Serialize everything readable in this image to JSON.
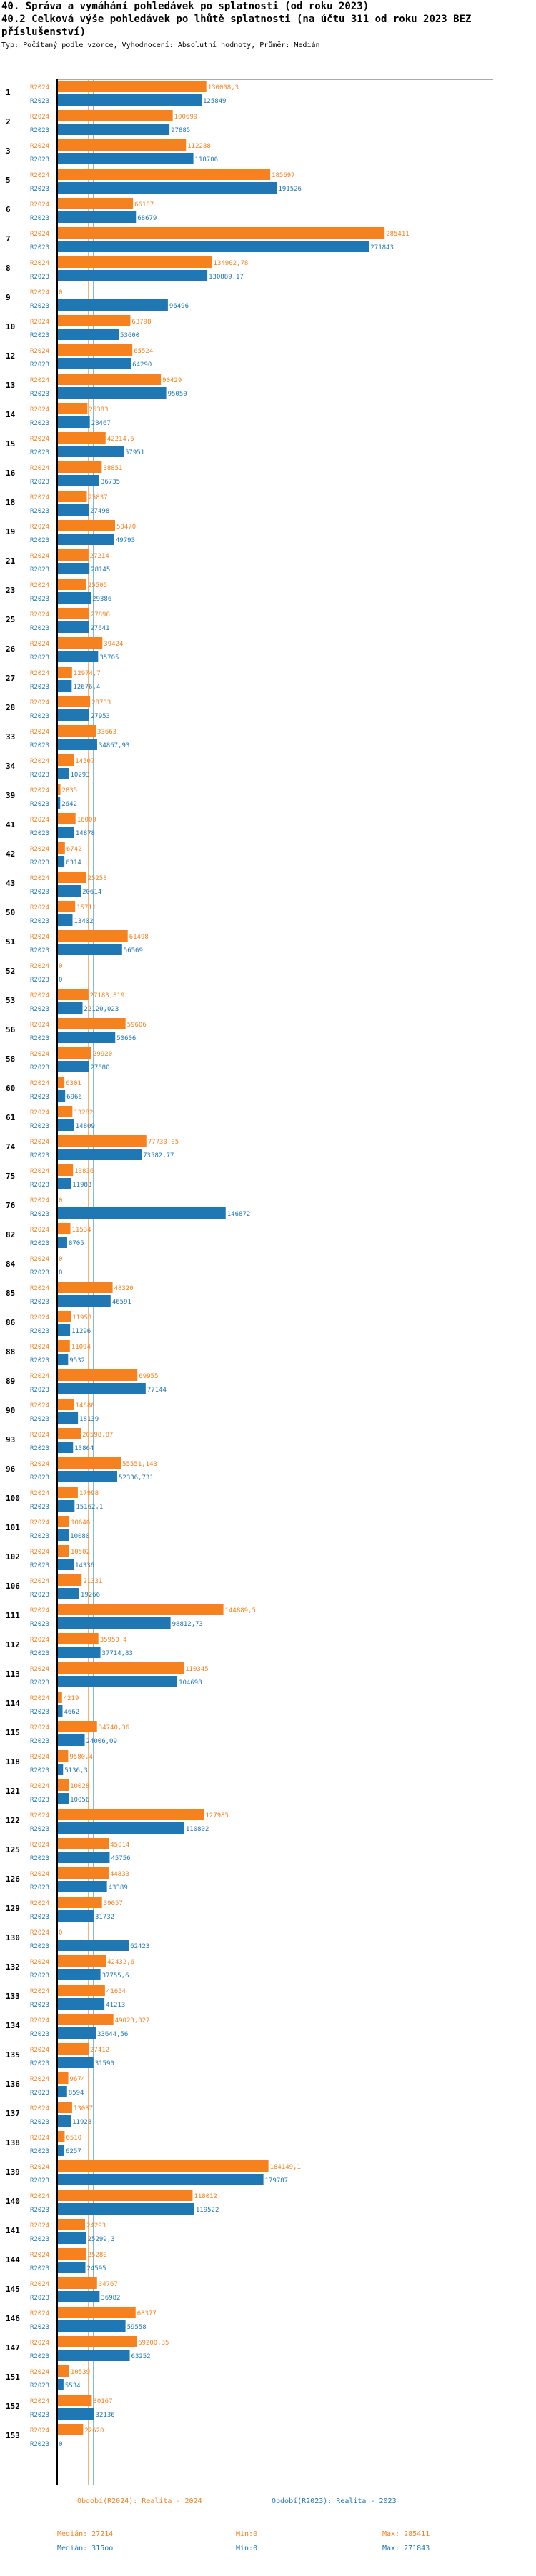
{
  "header": {
    "title": "40. Správa a vymáhání pohledávek po splatnosti (od roku 2023)",
    "subtitle_line1": "40.2 Celková výše pohledávek po lhůtě splatnosti (na účtu 311 od roku 2023 BEZ",
    "subtitle_line2": "příslušenství)",
    "note": "Typ: Počítaný podle vzorce, Vyhodnocení: Absolutní hodnoty, Průměr: Medián"
  },
  "colors": {
    "orange": "#f5821f",
    "blue": "#1f77b4",
    "grid": "#b7b7b7",
    "median_orange": "#f5a05a",
    "median_blue": "#7fb3d8"
  },
  "chart_data": {
    "type": "bar",
    "orientation": "horizontal",
    "xlim": [
      0,
      380000
    ],
    "series_labels": [
      "R2024",
      "R2023"
    ],
    "categories": [
      {
        "id": "1",
        "r2024": 130008,
        "r2024_label": "130008,3",
        "r2023": 125849,
        "r2023_label": "125849"
      },
      {
        "id": "2",
        "r2024": 100699,
        "r2024_label": "100699",
        "r2023": 97885,
        "r2023_label": "97885"
      },
      {
        "id": "3",
        "r2024": 112288,
        "r2024_label": "112288",
        "r2023": 118706,
        "r2023_label": "118706"
      },
      {
        "id": "5",
        "r2024": 185697,
        "r2024_label": "185697",
        "r2023": 191526,
        "r2023_label": "191526"
      },
      {
        "id": "6",
        "r2024": 66107,
        "r2024_label": "66107",
        "r2023": 68679,
        "r2023_label": "68679"
      },
      {
        "id": "7",
        "r2024": 285411,
        "r2024_label": "285411",
        "r2023": 271843,
        "r2023_label": "271843"
      },
      {
        "id": "8",
        "r2024": 134902,
        "r2024_label": "134902,78",
        "r2023": 130889,
        "r2023_label": "130889,17"
      },
      {
        "id": "9",
        "r2024": 0,
        "r2024_label": "0",
        "r2023": 96496,
        "r2023_label": "96496"
      },
      {
        "id": "10",
        "r2024": 63798,
        "r2024_label": "63798",
        "r2023": 53600,
        "r2023_label": "53600"
      },
      {
        "id": "12",
        "r2024": 65524,
        "r2024_label": "65524",
        "r2023": 64290,
        "r2023_label": "64290"
      },
      {
        "id": "13",
        "r2024": 90429,
        "r2024_label": "90429",
        "r2023": 95050,
        "r2023_label": "95050"
      },
      {
        "id": "14",
        "r2024": 26383,
        "r2024_label": "26383",
        "r2023": 28467,
        "r2023_label": "28467"
      },
      {
        "id": "15",
        "r2024": 42214,
        "r2024_label": "42214,6",
        "r2023": 57951,
        "r2023_label": "57951"
      },
      {
        "id": "16",
        "r2024": 38851,
        "r2024_label": "38851",
        "r2023": 36735,
        "r2023_label": "36735"
      },
      {
        "id": "18",
        "r2024": 25837,
        "r2024_label": "25837",
        "r2023": 27498,
        "r2023_label": "27498"
      },
      {
        "id": "19",
        "r2024": 50470,
        "r2024_label": "50470",
        "r2023": 49793,
        "r2023_label": "49793"
      },
      {
        "id": "21",
        "r2024": 27214,
        "r2024_label": "27214",
        "r2023": 28145,
        "r2023_label": "28145"
      },
      {
        "id": "23",
        "r2024": 25505,
        "r2024_label": "25505",
        "r2023": 29386,
        "r2023_label": "29386"
      },
      {
        "id": "25",
        "r2024": 27898,
        "r2024_label": "27898",
        "r2023": 27641,
        "r2023_label": "27641"
      },
      {
        "id": "26",
        "r2024": 39424,
        "r2024_label": "39424",
        "r2023": 35705,
        "r2023_label": "35705"
      },
      {
        "id": "27",
        "r2024": 12974,
        "r2024_label": "12974,7",
        "r2023": 12676,
        "r2023_label": "12676,4"
      },
      {
        "id": "28",
        "r2024": 28733,
        "r2024_label": "28733",
        "r2023": 27953,
        "r2023_label": "27953"
      },
      {
        "id": "33",
        "r2024": 33663,
        "r2024_label": "33663",
        "r2023": 34867,
        "r2023_label": "34867,93"
      },
      {
        "id": "34",
        "r2024": 14507,
        "r2024_label": "14507",
        "r2023": 10293,
        "r2023_label": "10293"
      },
      {
        "id": "39",
        "r2024": 2835,
        "r2024_label": "2835",
        "r2023": 2642,
        "r2023_label": "2642"
      },
      {
        "id": "41",
        "r2024": 16009,
        "r2024_label": "16009",
        "r2023": 14878,
        "r2023_label": "14878"
      },
      {
        "id": "42",
        "r2024": 6742,
        "r2024_label": "6742",
        "r2023": 6314,
        "r2023_label": "6314"
      },
      {
        "id": "43",
        "r2024": 25258,
        "r2024_label": "25258",
        "r2023": 20614,
        "r2023_label": "20614"
      },
      {
        "id": "50",
        "r2024": 15711,
        "r2024_label": "15711",
        "r2023": 13402,
        "r2023_label": "13402"
      },
      {
        "id": "51",
        "r2024": 61498,
        "r2024_label": "61498",
        "r2023": 56569,
        "r2023_label": "56569"
      },
      {
        "id": "52",
        "r2024": 0,
        "r2024_label": "0",
        "r2023": 0,
        "r2023_label": "0"
      },
      {
        "id": "53",
        "r2024": 27183,
        "r2024_label": "27183,819",
        "r2023": 22120,
        "r2023_label": "22120,023"
      },
      {
        "id": "56",
        "r2024": 59606,
        "r2024_label": "59606",
        "r2023": 50606,
        "r2023_label": "50606"
      },
      {
        "id": "58",
        "r2024": 29920,
        "r2024_label": "29920",
        "r2023": 27680,
        "r2023_label": "27680"
      },
      {
        "id": "60",
        "r2024": 6301,
        "r2024_label": "6301",
        "r2023": 6966,
        "r2023_label": "6966"
      },
      {
        "id": "61",
        "r2024": 13282,
        "r2024_label": "13282",
        "r2023": 14809,
        "r2023_label": "14809"
      },
      {
        "id": "74",
        "r2024": 77730,
        "r2024_label": "77730,05",
        "r2023": 73582,
        "r2023_label": "73582,77"
      },
      {
        "id": "75",
        "r2024": 13836,
        "r2024_label": "13836",
        "r2023": 11983,
        "r2023_label": "11983"
      },
      {
        "id": "76",
        "r2024": 0,
        "r2024_label": "0",
        "r2023": 146872,
        "r2023_label": "146872"
      },
      {
        "id": "82",
        "r2024": 11534,
        "r2024_label": "11534",
        "r2023": 8705,
        "r2023_label": "8705"
      },
      {
        "id": "84",
        "r2024": 0,
        "r2024_label": "0",
        "r2023": 0,
        "r2023_label": "0"
      },
      {
        "id": "85",
        "r2024": 48320,
        "r2024_label": "48320",
        "r2023": 46591,
        "r2023_label": "46591"
      },
      {
        "id": "86",
        "r2024": 11953,
        "r2024_label": "11953",
        "r2023": 11296,
        "r2023_label": "11296"
      },
      {
        "id": "88",
        "r2024": 11094,
        "r2024_label": "11094",
        "r2023": 9532,
        "r2023_label": "9532"
      },
      {
        "id": "89",
        "r2024": 69955,
        "r2024_label": "69955",
        "r2023": 77144,
        "r2023_label": "77144"
      },
      {
        "id": "90",
        "r2024": 14680,
        "r2024_label": "14680",
        "r2023": 18139,
        "r2023_label": "18139"
      },
      {
        "id": "93",
        "r2024": 20598,
        "r2024_label": "20598,87",
        "r2023": 13864,
        "r2023_label": "13864"
      },
      {
        "id": "96",
        "r2024": 55551,
        "r2024_label": "55551,143",
        "r2023": 52336,
        "r2023_label": "52336,731"
      },
      {
        "id": "100",
        "r2024": 17998,
        "r2024_label": "17998",
        "r2023": 15162,
        "r2023_label": "15162,1"
      },
      {
        "id": "101",
        "r2024": 10646,
        "r2024_label": "10646",
        "r2023": 10080,
        "r2023_label": "10080"
      },
      {
        "id": "102",
        "r2024": 10502,
        "r2024_label": "10502",
        "r2023": 14336,
        "r2023_label": "14336"
      },
      {
        "id": "106",
        "r2024": 21331,
        "r2024_label": "21331",
        "r2023": 19266,
        "r2023_label": "19266"
      },
      {
        "id": "111",
        "r2024": 144889,
        "r2024_label": "144889,5",
        "r2023": 98812,
        "r2023_label": "98812,73"
      },
      {
        "id": "112",
        "r2024": 35950,
        "r2024_label": "35950,4",
        "r2023": 37714,
        "r2023_label": "37714,83"
      },
      {
        "id": "113",
        "r2024": 110345,
        "r2024_label": "110345",
        "r2023": 104698,
        "r2023_label": "104698"
      },
      {
        "id": "114",
        "r2024": 4219,
        "r2024_label": "4219",
        "r2023": 4662,
        "r2023_label": "4662"
      },
      {
        "id": "115",
        "r2024": 34740,
        "r2024_label": "34740,36",
        "r2023": 24006,
        "r2023_label": "24006,09"
      },
      {
        "id": "118",
        "r2024": 9580,
        "r2024_label": "9580,4",
        "r2023": 5136,
        "r2023_label": "5136,3"
      },
      {
        "id": "121",
        "r2024": 10028,
        "r2024_label": "10028",
        "r2023": 10056,
        "r2023_label": "10056"
      },
      {
        "id": "122",
        "r2024": 127985,
        "r2024_label": "127985",
        "r2023": 110802,
        "r2023_label": "110802"
      },
      {
        "id": "125",
        "r2024": 45014,
        "r2024_label": "45014",
        "r2023": 45756,
        "r2023_label": "45756"
      },
      {
        "id": "126",
        "r2024": 44833,
        "r2024_label": "44833",
        "r2023": 43389,
        "r2023_label": "43389"
      },
      {
        "id": "129",
        "r2024": 39057,
        "r2024_label": "39057",
        "r2023": 31732,
        "r2023_label": "31732"
      },
      {
        "id": "130",
        "r2024": 0,
        "r2024_label": "0",
        "r2023": 62423,
        "r2023_label": "62423"
      },
      {
        "id": "132",
        "r2024": 42432,
        "r2024_label": "42432,6",
        "r2023": 37755,
        "r2023_label": "37755,6"
      },
      {
        "id": "133",
        "r2024": 41654,
        "r2024_label": "41654",
        "r2023": 41213,
        "r2023_label": "41213"
      },
      {
        "id": "134",
        "r2024": 49023,
        "r2024_label": "49023,327",
        "r2023": 33644,
        "r2023_label": "33644,56"
      },
      {
        "id": "135",
        "r2024": 27412,
        "r2024_label": "27412",
        "r2023": 31590,
        "r2023_label": "31590"
      },
      {
        "id": "136",
        "r2024": 9674,
        "r2024_label": "9674",
        "r2023": 8594,
        "r2023_label": "8594"
      },
      {
        "id": "137",
        "r2024": 13037,
        "r2024_label": "13037",
        "r2023": 11928,
        "r2023_label": "11928"
      },
      {
        "id": "138",
        "r2024": 6510,
        "r2024_label": "6510",
        "r2023": 6257,
        "r2023_label": "6257"
      },
      {
        "id": "139",
        "r2024": 184149,
        "r2024_label": "184149,1",
        "r2023": 179787,
        "r2023_label": "179787"
      },
      {
        "id": "140",
        "r2024": 118012,
        "r2024_label": "118012",
        "r2023": 119522,
        "r2023_label": "119522"
      },
      {
        "id": "141",
        "r2024": 24293,
        "r2024_label": "24293",
        "r2023": 25299,
        "r2023_label": "25299,3"
      },
      {
        "id": "144",
        "r2024": 25280,
        "r2024_label": "25280",
        "r2023": 24595,
        "r2023_label": "24595"
      },
      {
        "id": "145",
        "r2024": 34767,
        "r2024_label": "34767",
        "r2023": 36982,
        "r2023_label": "36982"
      },
      {
        "id": "146",
        "r2024": 68377,
        "r2024_label": "68377",
        "r2023": 59558,
        "r2023_label": "59558"
      },
      {
        "id": "147",
        "r2024": 69200,
        "r2024_label": "69200,35",
        "r2023": 63252,
        "r2023_label": "63252"
      },
      {
        "id": "151",
        "r2024": 10539,
        "r2024_label": "10539",
        "r2023": 5534,
        "r2023_label": "5534"
      },
      {
        "id": "152",
        "r2024": 30167,
        "r2024_label": "30167",
        "r2023": 32136,
        "r2023_label": "32136"
      },
      {
        "id": "153",
        "r2024": 22620,
        "r2024_label": "22620",
        "r2023": 0,
        "r2023_label": "0"
      }
    ],
    "median_r2024": 27214,
    "median_r2023": 31500
  },
  "footer": {
    "left_title": "Období(R2024): Realita - 2024",
    "left_median": "Medián: 27214",
    "left_min": "Min:0",
    "left_max": "Max: 285411",
    "right_title": "Období(R2023): Realita - 2023",
    "right_median": "Medián: 315oo",
    "right_min": "Min:0",
    "right_max": "Max: 271843"
  }
}
